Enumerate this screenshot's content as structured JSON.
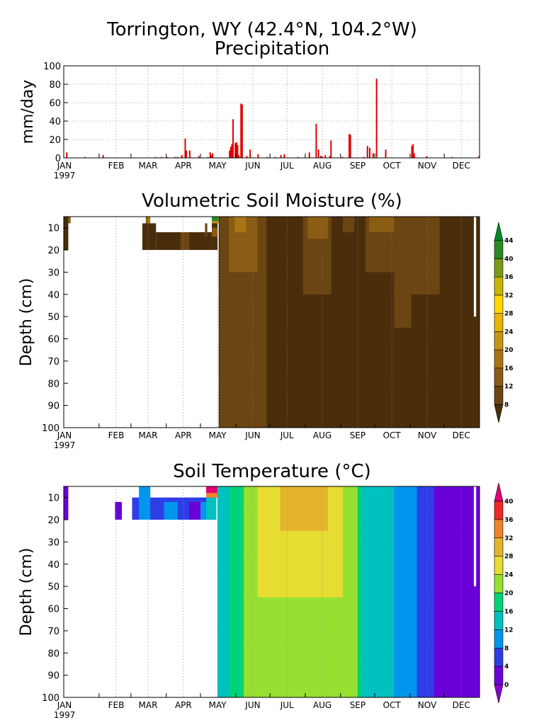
{
  "figure": {
    "title_line1": "Torrington, WY   (42.4°N, 104.2°W)",
    "title_line2": "Precipitation",
    "year_label": "1997",
    "months": [
      "JAN",
      "FEB",
      "MAR",
      "APR",
      "MAY",
      "JUN",
      "JUL",
      "AUG",
      "SEP",
      "OCT",
      "NOV",
      "DEC"
    ]
  },
  "chart_data": [
    {
      "type": "bar",
      "title": "Precipitation",
      "ylabel": "mm/day",
      "ylim": [
        0,
        100
      ],
      "yticks": [
        0,
        20,
        40,
        60,
        80,
        100
      ],
      "x_unit": "day of year 1997",
      "grid": true,
      "bar_color": "#e00000",
      "bars": [
        {
          "day": 2,
          "value": 6
        },
        {
          "day": 18,
          "value": 1
        },
        {
          "day": 34,
          "value": 3
        },
        {
          "day": 80,
          "value": 1
        },
        {
          "day": 85,
          "value": 1
        },
        {
          "day": 90,
          "value": 1
        },
        {
          "day": 97,
          "value": 1
        },
        {
          "day": 99,
          "value": 1
        },
        {
          "day": 103,
          "value": 3
        },
        {
          "day": 106,
          "value": 21
        },
        {
          "day": 107,
          "value": 8
        },
        {
          "day": 110,
          "value": 8
        },
        {
          "day": 118,
          "value": 2
        },
        {
          "day": 126,
          "value": 1
        },
        {
          "day": 128,
          "value": 6
        },
        {
          "day": 129,
          "value": 3
        },
        {
          "day": 130,
          "value": 5
        },
        {
          "day": 145,
          "value": 8
        },
        {
          "day": 146,
          "value": 12
        },
        {
          "day": 147,
          "value": 15
        },
        {
          "day": 148,
          "value": 42
        },
        {
          "day": 150,
          "value": 16
        },
        {
          "day": 151,
          "value": 17
        },
        {
          "day": 152,
          "value": 14
        },
        {
          "day": 153,
          "value": 3
        },
        {
          "day": 155,
          "value": 59
        },
        {
          "day": 156,
          "value": 58
        },
        {
          "day": 160,
          "value": 2
        },
        {
          "day": 163,
          "value": 9
        },
        {
          "day": 170,
          "value": 4
        },
        {
          "day": 178,
          "value": 1
        },
        {
          "day": 185,
          "value": 1
        },
        {
          "day": 190,
          "value": 3
        },
        {
          "day": 193,
          "value": 4
        },
        {
          "day": 205,
          "value": 1
        },
        {
          "day": 215,
          "value": 6
        },
        {
          "day": 221,
          "value": 37
        },
        {
          "day": 223,
          "value": 9
        },
        {
          "day": 225,
          "value": 2
        },
        {
          "day": 226,
          "value": 2
        },
        {
          "day": 229,
          "value": 3
        },
        {
          "day": 233,
          "value": 2
        },
        {
          "day": 234,
          "value": 19
        },
        {
          "day": 244,
          "value": 1
        },
        {
          "day": 250,
          "value": 26
        },
        {
          "day": 251,
          "value": 25
        },
        {
          "day": 263,
          "value": 1
        },
        {
          "day": 266,
          "value": 13
        },
        {
          "day": 268,
          "value": 11
        },
        {
          "day": 271,
          "value": 5
        },
        {
          "day": 274,
          "value": 86
        },
        {
          "day": 282,
          "value": 9
        },
        {
          "day": 305,
          "value": 13
        },
        {
          "day": 306,
          "value": 15
        },
        {
          "day": 307,
          "value": 5
        },
        {
          "day": 318,
          "value": 2
        },
        {
          "day": 340,
          "value": 1
        },
        {
          "day": 364,
          "value": 2
        }
      ]
    },
    {
      "type": "heatmap",
      "title": "Volumetric Soil Moisture (%)",
      "ylabel": "Depth (cm)",
      "ylim": [
        100,
        5
      ],
      "yticks": [
        10,
        20,
        30,
        40,
        50,
        60,
        70,
        80,
        90,
        100
      ],
      "colorbar": {
        "levels": [
          8,
          12,
          16,
          20,
          24,
          28,
          32,
          36,
          40,
          44
        ],
        "labels": [
          "8",
          "12",
          "16",
          "20",
          "24",
          "28",
          "32",
          "36",
          "40",
          "44"
        ],
        "colors": [
          "#4a2e0c",
          "#6b4512",
          "#8a5c14",
          "#a87414",
          "#c89414",
          "#e8b400",
          "#ffd800",
          "#c8b400",
          "#7a9a18",
          "#2a8a20",
          "#008a2a"
        ]
      },
      "regions": [
        {
          "d0": 0,
          "d1": 4,
          "z0": 5,
          "z1": 20,
          "color": "#4a2e0c"
        },
        {
          "d0": 4,
          "d1": 6,
          "z0": 5,
          "z1": 8,
          "color": "#8a5c14"
        },
        {
          "d0": 69,
          "d1": 81,
          "z0": 8,
          "z1": 20,
          "color": "#4a2e0c"
        },
        {
          "d0": 72,
          "d1": 74,
          "z0": 5,
          "z1": 8,
          "color": "#8a5c14"
        },
        {
          "d0": 74,
          "d1": 76,
          "z0": 5,
          "z1": 8,
          "color": "#a87414"
        },
        {
          "d0": 81,
          "d1": 103,
          "z0": 12,
          "z1": 20,
          "color": "#4a2e0c"
        },
        {
          "d0": 103,
          "d1": 110,
          "z0": 12,
          "z1": 20,
          "color": "#6b4512"
        },
        {
          "d0": 110,
          "d1": 130,
          "z0": 12,
          "z1": 20,
          "color": "#4a2e0c"
        },
        {
          "d0": 130,
          "d1": 135,
          "z0": 5,
          "z1": 20,
          "color": "#4a2e0c"
        },
        {
          "d0": 124,
          "d1": 126,
          "z0": 8,
          "z1": 14,
          "color": "#6b4512"
        },
        {
          "d0": 130,
          "d1": 135,
          "z0": 10,
          "z1": 14,
          "color": "#8a5c14"
        },
        {
          "d0": 130,
          "d1": 136,
          "z0": 5,
          "z1": 7,
          "color": "#2a8a20"
        },
        {
          "d0": 130,
          "d1": 136,
          "z0": 7,
          "z1": 8,
          "color": "#c89414"
        },
        {
          "d0": 136,
          "d1": 365,
          "z0": 5,
          "z1": 100,
          "color": "#4a2e0c"
        },
        {
          "d0": 137,
          "d1": 178,
          "z0": 5,
          "z1": 100,
          "color": "#6b4512"
        },
        {
          "d0": 145,
          "d1": 170,
          "z0": 5,
          "z1": 30,
          "color": "#8a5c14"
        },
        {
          "d0": 150,
          "d1": 160,
          "z0": 5,
          "z1": 12,
          "color": "#a87414"
        },
        {
          "d0": 210,
          "d1": 235,
          "z0": 5,
          "z1": 40,
          "color": "#6b4512"
        },
        {
          "d0": 214,
          "d1": 232,
          "z0": 5,
          "z1": 15,
          "color": "#8a5c14"
        },
        {
          "d0": 245,
          "d1": 255,
          "z0": 5,
          "z1": 12,
          "color": "#6b4512"
        },
        {
          "d0": 265,
          "d1": 302,
          "z0": 5,
          "z1": 30,
          "color": "#6b4512"
        },
        {
          "d0": 268,
          "d1": 292,
          "z0": 5,
          "z1": 12,
          "color": "#8a5c14"
        },
        {
          "d0": 302,
          "d1": 330,
          "z0": 5,
          "z1": 40,
          "color": "#6b4512"
        },
        {
          "d0": 290,
          "d1": 305,
          "z0": 5,
          "z1": 55,
          "color": "#6b4512"
        },
        {
          "d0": 360,
          "d1": 362,
          "z0": 5,
          "z1": 50,
          "color": "#ffffff"
        }
      ]
    },
    {
      "type": "heatmap",
      "title": "Soil Temperature (°C)",
      "ylabel": "Depth (cm)",
      "ylim": [
        100,
        5
      ],
      "yticks": [
        10,
        20,
        30,
        40,
        50,
        60,
        70,
        80,
        90,
        100
      ],
      "colorbar": {
        "levels": [
          0,
          4,
          8,
          12,
          16,
          20,
          24,
          28,
          32,
          36,
          40
        ],
        "labels": [
          "0",
          "4",
          "8",
          "12",
          "16",
          "20",
          "24",
          "28",
          "32",
          "36",
          "40"
        ],
        "colors": [
          "#8800d0",
          "#6a00d8",
          "#2e3ee6",
          "#0096ee",
          "#00c0c0",
          "#00d278",
          "#96e032",
          "#e6dc32",
          "#e6b42a",
          "#f08228",
          "#f02828",
          "#e00070"
        ]
      },
      "regions": [
        {
          "d0": 0,
          "d1": 4,
          "z0": 5,
          "z1": 20,
          "color": "#6a00d8"
        },
        {
          "d0": 45,
          "d1": 51,
          "z0": 12,
          "z1": 20,
          "color": "#6a00d8"
        },
        {
          "d0": 60,
          "d1": 134,
          "z0": 10,
          "z1": 20,
          "color": "#2e3ee6"
        },
        {
          "d0": 66,
          "d1": 76,
          "z0": 5,
          "z1": 20,
          "color": "#0096ee"
        },
        {
          "d0": 88,
          "d1": 100,
          "z0": 12,
          "z1": 20,
          "color": "#0096ee"
        },
        {
          "d0": 110,
          "d1": 120,
          "z0": 12,
          "z1": 20,
          "color": "#6a00d8"
        },
        {
          "d0": 120,
          "d1": 134,
          "z0": 12,
          "z1": 20,
          "color": "#0096ee"
        },
        {
          "d0": 125,
          "d1": 134,
          "z0": 10,
          "z1": 20,
          "color": "#00c0c0"
        },
        {
          "d0": 125,
          "d1": 135,
          "z0": 5,
          "z1": 8,
          "color": "#e00070"
        },
        {
          "d0": 125,
          "d1": 135,
          "z0": 8,
          "z1": 10,
          "color": "#f08228"
        },
        {
          "d0": 135,
          "d1": 365,
          "z0": 5,
          "z1": 100,
          "color": "#6a00d8"
        },
        {
          "d0": 135,
          "d1": 325,
          "z0": 5,
          "z1": 100,
          "color": "#2e3ee6"
        },
        {
          "d0": 135,
          "d1": 310,
          "z0": 5,
          "z1": 100,
          "color": "#0096ee"
        },
        {
          "d0": 135,
          "d1": 290,
          "z0": 5,
          "z1": 100,
          "color": "#00c0c0"
        },
        {
          "d0": 145,
          "d1": 262,
          "z0": 5,
          "z1": 100,
          "color": "#00d278"
        },
        {
          "d0": 158,
          "d1": 258,
          "z0": 5,
          "z1": 100,
          "color": "#96e032"
        },
        {
          "d0": 170,
          "d1": 245,
          "z0": 5,
          "z1": 55,
          "color": "#e6dc32"
        },
        {
          "d0": 190,
          "d1": 232,
          "z0": 5,
          "z1": 25,
          "color": "#e6b42a"
        },
        {
          "d0": 360,
          "d1": 362,
          "z0": 5,
          "z1": 50,
          "color": "#ffffff"
        }
      ]
    }
  ]
}
